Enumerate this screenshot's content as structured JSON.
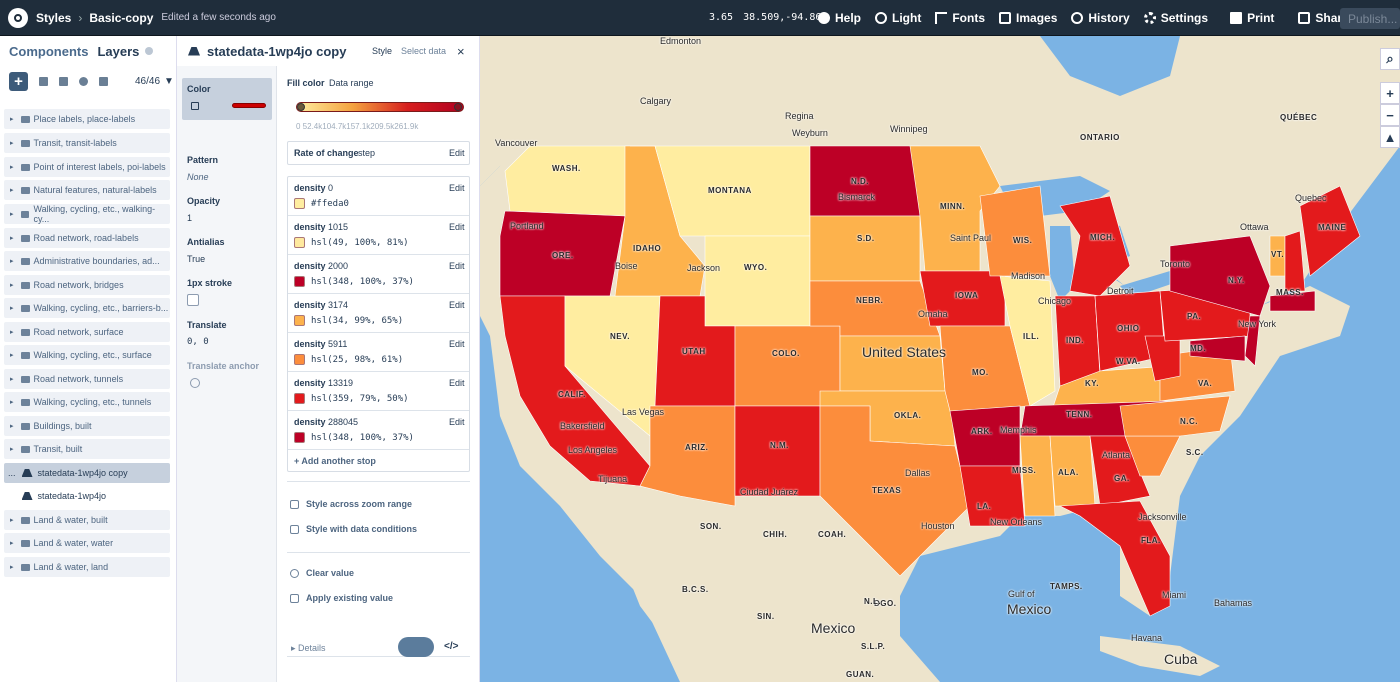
{
  "topbar": {
    "crumb1": "Styles",
    "crumb2": "Basic-copy",
    "edited": "Edited a few seconds ago",
    "zoom": "3.65",
    "coords": "38.509,-94.866",
    "menu": [
      "Help",
      "Light",
      "Fonts",
      "Images",
      "History",
      "Settings",
      "Print",
      "Share..."
    ],
    "publish": "Publish..."
  },
  "left": {
    "tab_components": "Components",
    "tab_layers": "Layers",
    "count": "46/46",
    "layers": [
      "Place labels, place-labels",
      "Transit, transit-labels",
      "Point of interest labels, poi-labels",
      "Natural features, natural-labels",
      "Walking, cycling, etc., walking-cy...",
      "Road network, road-labels",
      "Administrative boundaries, ad...",
      "Road network, bridges",
      "Walking, cycling, etc., barriers-b...",
      "Road network, surface",
      "Walking, cycling, etc., surface",
      "Road network, tunnels",
      "Walking, cycling, etc., tunnels",
      "Buildings, built",
      "Transit, built",
      "statedata-1wp4jo copy",
      "statedata-1wp4jo",
      "Land & water, built",
      "Land & water, water",
      "Land & water, land"
    ],
    "dots": "..."
  },
  "mid": {
    "title": "statedata-1wp4jo copy",
    "tab_style": "Style",
    "tab_select": "Select data",
    "close": "×",
    "props": {
      "color": "Color",
      "pattern": "Pattern",
      "pattern_val": "None",
      "opacity": "Opacity",
      "opacity_val": "1",
      "antialias": "Antialias",
      "antialias_val": "True",
      "stroke": "1px stroke",
      "translate": "Translate",
      "translate_val": "0, 0",
      "translate_anchor": "Translate anchor"
    },
    "fill": {
      "label": "Fill color",
      "mode": "Data range",
      "ticks": "0    52.4k104.7k157.1k209.5k261.9k",
      "roc_label": "Rate of change",
      "roc_val": "step",
      "edit": "Edit",
      "stops": [
        {
          "key": "density",
          "num": "0",
          "val": "#ffeda0",
          "color": "#ffeda0"
        },
        {
          "key": "density",
          "num": "1015",
          "val": "hsl(49, 100%, 81%)",
          "color": "#ffe99e"
        },
        {
          "key": "density",
          "num": "2000",
          "val": "hsl(348, 100%, 37%)",
          "color": "#bd0026"
        },
        {
          "key": "density",
          "num": "3174",
          "val": "hsl(34, 99%, 65%)",
          "color": "#fdb24c"
        },
        {
          "key": "density",
          "num": "5911",
          "val": "hsl(25, 98%, 61%)",
          "color": "#fc8d3c"
        },
        {
          "key": "density",
          "num": "13319",
          "val": "hsl(359, 79%, 50%)",
          "color": "#e31a1c"
        },
        {
          "key": "density",
          "num": "288045",
          "val": "hsl(348, 100%, 37%)",
          "color": "#bd0026"
        }
      ],
      "add_stop": "+  Add another stop",
      "zoom_range": "Style across zoom range",
      "data_cond": "Style with data conditions",
      "clear": "Clear value",
      "apply": "Apply existing value",
      "details": "▸  Details",
      "code": "</>"
    }
  },
  "map": {
    "labels": [
      "Edmonton",
      "Calgary",
      "Regina",
      "Weyburn",
      "Winnipeg",
      "Vancouver",
      "ONTARIO",
      "QUÉBEC",
      "Quebec",
      "Ottawa",
      "Toronto",
      "WASH.",
      "MONTANA",
      "N.D.",
      "Bismarck",
      "MINN.",
      "Saint Paul",
      "Portland",
      "ORE.",
      "IDAHO",
      "Boise",
      "Jackson",
      "WYO.",
      "S.D.",
      "WIS.",
      "Madison",
      "MICH.",
      "Detroit",
      "N.Y.",
      "VT.",
      "MAINE",
      "MASS.",
      "New York",
      "NEBR.",
      "Omaha",
      "IOWA",
      "Chicago",
      "NEV.",
      "UTAH",
      "COLO.",
      "United States",
      "ILL.",
      "IND.",
      "OHIO",
      "PA.",
      "W.VA.",
      "MD.",
      "VA.",
      "KY.",
      "MO.",
      "CALIF.",
      "Las Vegas",
      "Bakersfield",
      "Los Angeles",
      "OKLA.",
      "ARK.",
      "Memphis",
      "TENN.",
      "N.C.",
      "S.C.",
      "ARIZ.",
      "N.M.",
      "Dallas",
      "TEXAS",
      "MISS.",
      "ALA.",
      "GA.",
      "Atlanta",
      "LA.",
      "New Orleans",
      "Houston",
      "Jacksonville",
      "FLA.",
      "Miami",
      "Tijuana",
      "Ciudad Juárez",
      "SON.",
      "CHIH.",
      "COAH.",
      "B.C.S.",
      "SIN.",
      "DGO.",
      "N.L.",
      "Mexico",
      "S.L.P.",
      "GUAN.",
      "Gulf of",
      "Mexico",
      "Bahamas",
      "Havana",
      "Cuba",
      "TAMPS."
    ],
    "colors": {
      "light": "#ffeda0",
      "yellow": "#fee9a0",
      "lorange": "#fdb24c",
      "orange": "#fc8d3c",
      "red": "#e31a1c",
      "dark": "#bd0026",
      "land": "#ede4cc",
      "water": "#7bb3e4"
    }
  }
}
